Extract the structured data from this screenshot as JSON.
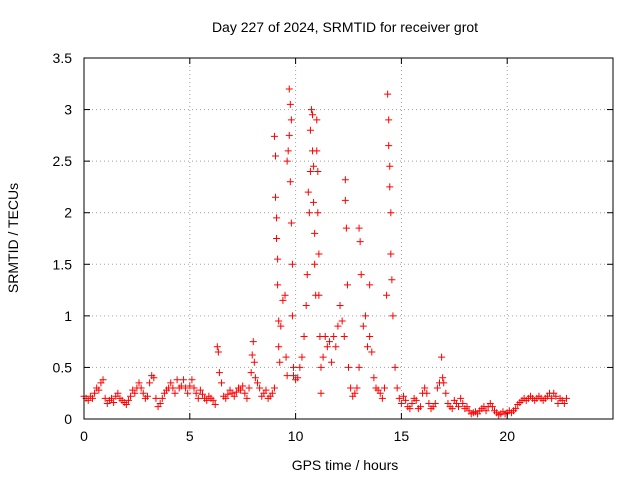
{
  "chart_data": {
    "type": "scatter",
    "title": "Day 227 of 2024, SRMTID for receiver grot",
    "xlabel": "GPS time / hours",
    "ylabel": "SRMTID / TECUs",
    "xlim": [
      0,
      25
    ],
    "ylim": [
      0,
      3.5
    ],
    "xticks": [
      0,
      5,
      10,
      15,
      20
    ],
    "yticks": [
      0,
      0.5,
      1,
      1.5,
      2,
      2.5,
      3,
      3.5
    ],
    "xtick_labels": [
      "0",
      "5",
      "10",
      "15",
      "20"
    ],
    "ytick_labels": [
      "0",
      "0.5",
      "1",
      "1.5",
      "2",
      "2.5",
      "3",
      "3.5"
    ],
    "grid": true,
    "marker": "+",
    "color": "#ff0000",
    "series": [
      {
        "name": "grot",
        "points": [
          [
            0.0,
            0.22
          ],
          [
            0.1,
            0.2
          ],
          [
            0.2,
            0.18
          ],
          [
            0.3,
            0.22
          ],
          [
            0.4,
            0.2
          ],
          [
            0.5,
            0.25
          ],
          [
            0.6,
            0.3
          ],
          [
            0.7,
            0.28
          ],
          [
            0.8,
            0.35
          ],
          [
            0.9,
            0.38
          ],
          [
            1.0,
            0.2
          ],
          [
            1.1,
            0.15
          ],
          [
            1.2,
            0.18
          ],
          [
            1.3,
            0.2
          ],
          [
            1.4,
            0.16
          ],
          [
            1.5,
            0.22
          ],
          [
            1.6,
            0.25
          ],
          [
            1.7,
            0.2
          ],
          [
            1.8,
            0.18
          ],
          [
            1.9,
            0.16
          ],
          [
            2.0,
            0.14
          ],
          [
            2.1,
            0.18
          ],
          [
            2.2,
            0.22
          ],
          [
            2.3,
            0.28
          ],
          [
            2.4,
            0.25
          ],
          [
            2.5,
            0.3
          ],
          [
            2.6,
            0.35
          ],
          [
            2.7,
            0.3
          ],
          [
            2.8,
            0.25
          ],
          [
            2.9,
            0.2
          ],
          [
            3.0,
            0.22
          ],
          [
            3.1,
            0.35
          ],
          [
            3.2,
            0.42
          ],
          [
            3.3,
            0.4
          ],
          [
            3.4,
            0.2
          ],
          [
            3.5,
            0.12
          ],
          [
            3.6,
            0.15
          ],
          [
            3.7,
            0.2
          ],
          [
            3.8,
            0.25
          ],
          [
            3.9,
            0.28
          ],
          [
            4.0,
            0.3
          ],
          [
            4.1,
            0.35
          ],
          [
            4.2,
            0.3
          ],
          [
            4.3,
            0.25
          ],
          [
            4.4,
            0.38
          ],
          [
            4.5,
            0.3
          ],
          [
            4.6,
            0.32
          ],
          [
            4.7,
            0.38
          ],
          [
            4.8,
            0.3
          ],
          [
            4.9,
            0.25
          ],
          [
            5.0,
            0.32
          ],
          [
            5.1,
            0.38
          ],
          [
            5.2,
            0.3
          ],
          [
            5.3,
            0.25
          ],
          [
            5.4,
            0.2
          ],
          [
            5.5,
            0.28
          ],
          [
            5.6,
            0.24
          ],
          [
            5.7,
            0.2
          ],
          [
            5.8,
            0.18
          ],
          [
            5.9,
            0.22
          ],
          [
            6.0,
            0.2
          ],
          [
            6.1,
            0.18
          ],
          [
            6.2,
            0.14
          ],
          [
            6.3,
            0.7
          ],
          [
            6.35,
            0.65
          ],
          [
            6.4,
            0.45
          ],
          [
            6.5,
            0.35
          ],
          [
            6.6,
            0.22
          ],
          [
            6.7,
            0.2
          ],
          [
            6.8,
            0.24
          ],
          [
            6.9,
            0.28
          ],
          [
            7.0,
            0.25
          ],
          [
            7.1,
            0.22
          ],
          [
            7.2,
            0.26
          ],
          [
            7.3,
            0.3
          ],
          [
            7.4,
            0.28
          ],
          [
            7.5,
            0.32
          ],
          [
            7.6,
            0.25
          ],
          [
            7.7,
            0.2
          ],
          [
            7.8,
            0.3
          ],
          [
            7.9,
            0.45
          ],
          [
            7.95,
            0.62
          ],
          [
            8.0,
            0.75
          ],
          [
            8.05,
            0.55
          ],
          [
            8.1,
            0.4
          ],
          [
            8.2,
            0.35
          ],
          [
            8.3,
            0.3
          ],
          [
            8.4,
            0.22
          ],
          [
            8.5,
            0.25
          ],
          [
            8.6,
            0.28
          ],
          [
            8.7,
            0.2
          ],
          [
            8.8,
            0.22
          ],
          [
            8.9,
            0.25
          ],
          [
            9.0,
            0.3
          ],
          [
            9.0,
            2.74
          ],
          [
            9.05,
            2.55
          ],
          [
            9.05,
            2.15
          ],
          [
            9.1,
            1.95
          ],
          [
            9.1,
            1.75
          ],
          [
            9.15,
            1.55
          ],
          [
            9.15,
            1.3
          ],
          [
            9.2,
            0.95
          ],
          [
            9.2,
            0.7
          ],
          [
            9.25,
            0.55
          ],
          [
            9.3,
            0.9
          ],
          [
            9.4,
            1.15
          ],
          [
            9.5,
            1.2
          ],
          [
            9.55,
            0.6
          ],
          [
            9.6,
            0.42
          ],
          [
            9.6,
            2.5
          ],
          [
            9.65,
            2.6
          ],
          [
            9.7,
            3.2
          ],
          [
            9.7,
            2.75
          ],
          [
            9.75,
            3.05
          ],
          [
            9.75,
            2.3
          ],
          [
            9.8,
            2.9
          ],
          [
            9.8,
            1.9
          ],
          [
            9.85,
            1.5
          ],
          [
            9.85,
            1.0
          ],
          [
            9.9,
            0.5
          ],
          [
            9.9,
            0.42
          ],
          [
            10.0,
            0.38
          ],
          [
            10.1,
            0.4
          ],
          [
            10.2,
            0.5
          ],
          [
            10.3,
            0.6
          ],
          [
            10.4,
            0.8
          ],
          [
            10.5,
            1.1
          ],
          [
            10.55,
            1.4
          ],
          [
            10.6,
            2.2
          ],
          [
            10.65,
            2.0
          ],
          [
            10.7,
            2.4
          ],
          [
            10.7,
            2.8
          ],
          [
            10.75,
            3.0
          ],
          [
            10.8,
            2.95
          ],
          [
            10.8,
            2.6
          ],
          [
            10.85,
            2.45
          ],
          [
            10.85,
            2.1
          ],
          [
            10.9,
            1.8
          ],
          [
            10.9,
            1.5
          ],
          [
            10.95,
            1.2
          ],
          [
            11.0,
            2.9
          ],
          [
            11.0,
            2.6
          ],
          [
            11.05,
            2.4
          ],
          [
            11.05,
            2.0
          ],
          [
            11.1,
            1.6
          ],
          [
            11.1,
            1.2
          ],
          [
            11.15,
            0.8
          ],
          [
            11.2,
            0.5
          ],
          [
            11.2,
            0.25
          ],
          [
            11.3,
            0.6
          ],
          [
            11.4,
            0.8
          ],
          [
            11.5,
            0.7
          ],
          [
            11.6,
            0.75
          ],
          [
            11.7,
            0.55
          ],
          [
            11.8,
            0.8
          ],
          [
            11.9,
            0.7
          ],
          [
            12.0,
            0.9
          ],
          [
            12.1,
            1.1
          ],
          [
            12.2,
            0.95
          ],
          [
            12.3,
            0.8
          ],
          [
            12.35,
            2.32
          ],
          [
            12.35,
            2.12
          ],
          [
            12.4,
            1.85
          ],
          [
            12.45,
            1.3
          ],
          [
            12.5,
            0.5
          ],
          [
            12.6,
            0.3
          ],
          [
            12.7,
            0.22
          ],
          [
            12.8,
            0.25
          ],
          [
            12.9,
            0.3
          ],
          [
            13.0,
            0.5
          ],
          [
            13.0,
            1.85
          ],
          [
            13.05,
            1.72
          ],
          [
            13.1,
            1.4
          ],
          [
            13.2,
            0.9
          ],
          [
            13.3,
            1.0
          ],
          [
            13.4,
            0.7
          ],
          [
            13.5,
            0.8
          ],
          [
            13.5,
            1.3
          ],
          [
            13.6,
            0.65
          ],
          [
            13.7,
            0.4
          ],
          [
            13.8,
            0.3
          ],
          [
            13.9,
            0.28
          ],
          [
            14.0,
            0.25
          ],
          [
            14.1,
            0.2
          ],
          [
            14.2,
            0.3
          ],
          [
            14.3,
            1.2
          ],
          [
            14.35,
            3.15
          ],
          [
            14.4,
            2.9
          ],
          [
            14.4,
            2.65
          ],
          [
            14.45,
            2.45
          ],
          [
            14.45,
            2.25
          ],
          [
            14.5,
            2.0
          ],
          [
            14.5,
            1.6
          ],
          [
            14.55,
            1.35
          ],
          [
            14.6,
            1.0
          ],
          [
            14.7,
            0.5
          ],
          [
            14.8,
            0.3
          ],
          [
            14.9,
            0.2
          ],
          [
            15.0,
            0.15
          ],
          [
            15.1,
            0.22
          ],
          [
            15.2,
            0.18
          ],
          [
            15.3,
            0.12
          ],
          [
            15.4,
            0.1
          ],
          [
            15.5,
            0.15
          ],
          [
            15.6,
            0.2
          ],
          [
            15.7,
            0.18
          ],
          [
            15.8,
            0.1
          ],
          [
            15.9,
            0.12
          ],
          [
            16.0,
            0.25
          ],
          [
            16.1,
            0.3
          ],
          [
            16.2,
            0.25
          ],
          [
            16.3,
            0.15
          ],
          [
            16.4,
            0.1
          ],
          [
            16.5,
            0.12
          ],
          [
            16.6,
            0.15
          ],
          [
            16.7,
            0.3
          ],
          [
            16.8,
            0.35
          ],
          [
            16.9,
            0.6
          ],
          [
            16.95,
            0.4
          ],
          [
            17.0,
            0.35
          ],
          [
            17.1,
            0.25
          ],
          [
            17.2,
            0.15
          ],
          [
            17.3,
            0.12
          ],
          [
            17.4,
            0.1
          ],
          [
            17.5,
            0.18
          ],
          [
            17.6,
            0.15
          ],
          [
            17.7,
            0.12
          ],
          [
            17.8,
            0.2
          ],
          [
            17.9,
            0.15
          ],
          [
            18.0,
            0.1
          ],
          [
            18.1,
            0.12
          ],
          [
            18.2,
            0.08
          ],
          [
            18.3,
            0.05
          ],
          [
            18.4,
            0.06
          ],
          [
            18.5,
            0.07
          ],
          [
            18.6,
            0.05
          ],
          [
            18.7,
            0.08
          ],
          [
            18.8,
            0.1
          ],
          [
            18.9,
            0.12
          ],
          [
            19.0,
            0.08
          ],
          [
            19.1,
            0.12
          ],
          [
            19.2,
            0.15
          ],
          [
            19.3,
            0.12
          ],
          [
            19.4,
            0.08
          ],
          [
            19.5,
            0.06
          ],
          [
            19.6,
            0.04
          ],
          [
            19.7,
            0.05
          ],
          [
            19.8,
            0.07
          ],
          [
            19.9,
            0.05
          ],
          [
            20.0,
            0.06
          ],
          [
            20.1,
            0.08
          ],
          [
            20.2,
            0.06
          ],
          [
            20.3,
            0.08
          ],
          [
            20.4,
            0.1
          ],
          [
            20.5,
            0.14
          ],
          [
            20.6,
            0.16
          ],
          [
            20.7,
            0.18
          ],
          [
            20.8,
            0.2
          ],
          [
            20.9,
            0.18
          ],
          [
            21.0,
            0.2
          ],
          [
            21.1,
            0.22
          ],
          [
            21.2,
            0.2
          ],
          [
            21.3,
            0.18
          ],
          [
            21.4,
            0.2
          ],
          [
            21.5,
            0.22
          ],
          [
            21.6,
            0.2
          ],
          [
            21.7,
            0.18
          ],
          [
            21.8,
            0.2
          ],
          [
            21.9,
            0.22
          ],
          [
            22.0,
            0.25
          ],
          [
            22.1,
            0.2
          ],
          [
            22.2,
            0.25
          ],
          [
            22.3,
            0.22
          ],
          [
            22.4,
            0.15
          ],
          [
            22.5,
            0.2
          ],
          [
            22.6,
            0.18
          ],
          [
            22.7,
            0.15
          ],
          [
            22.8,
            0.2
          ]
        ]
      }
    ]
  }
}
